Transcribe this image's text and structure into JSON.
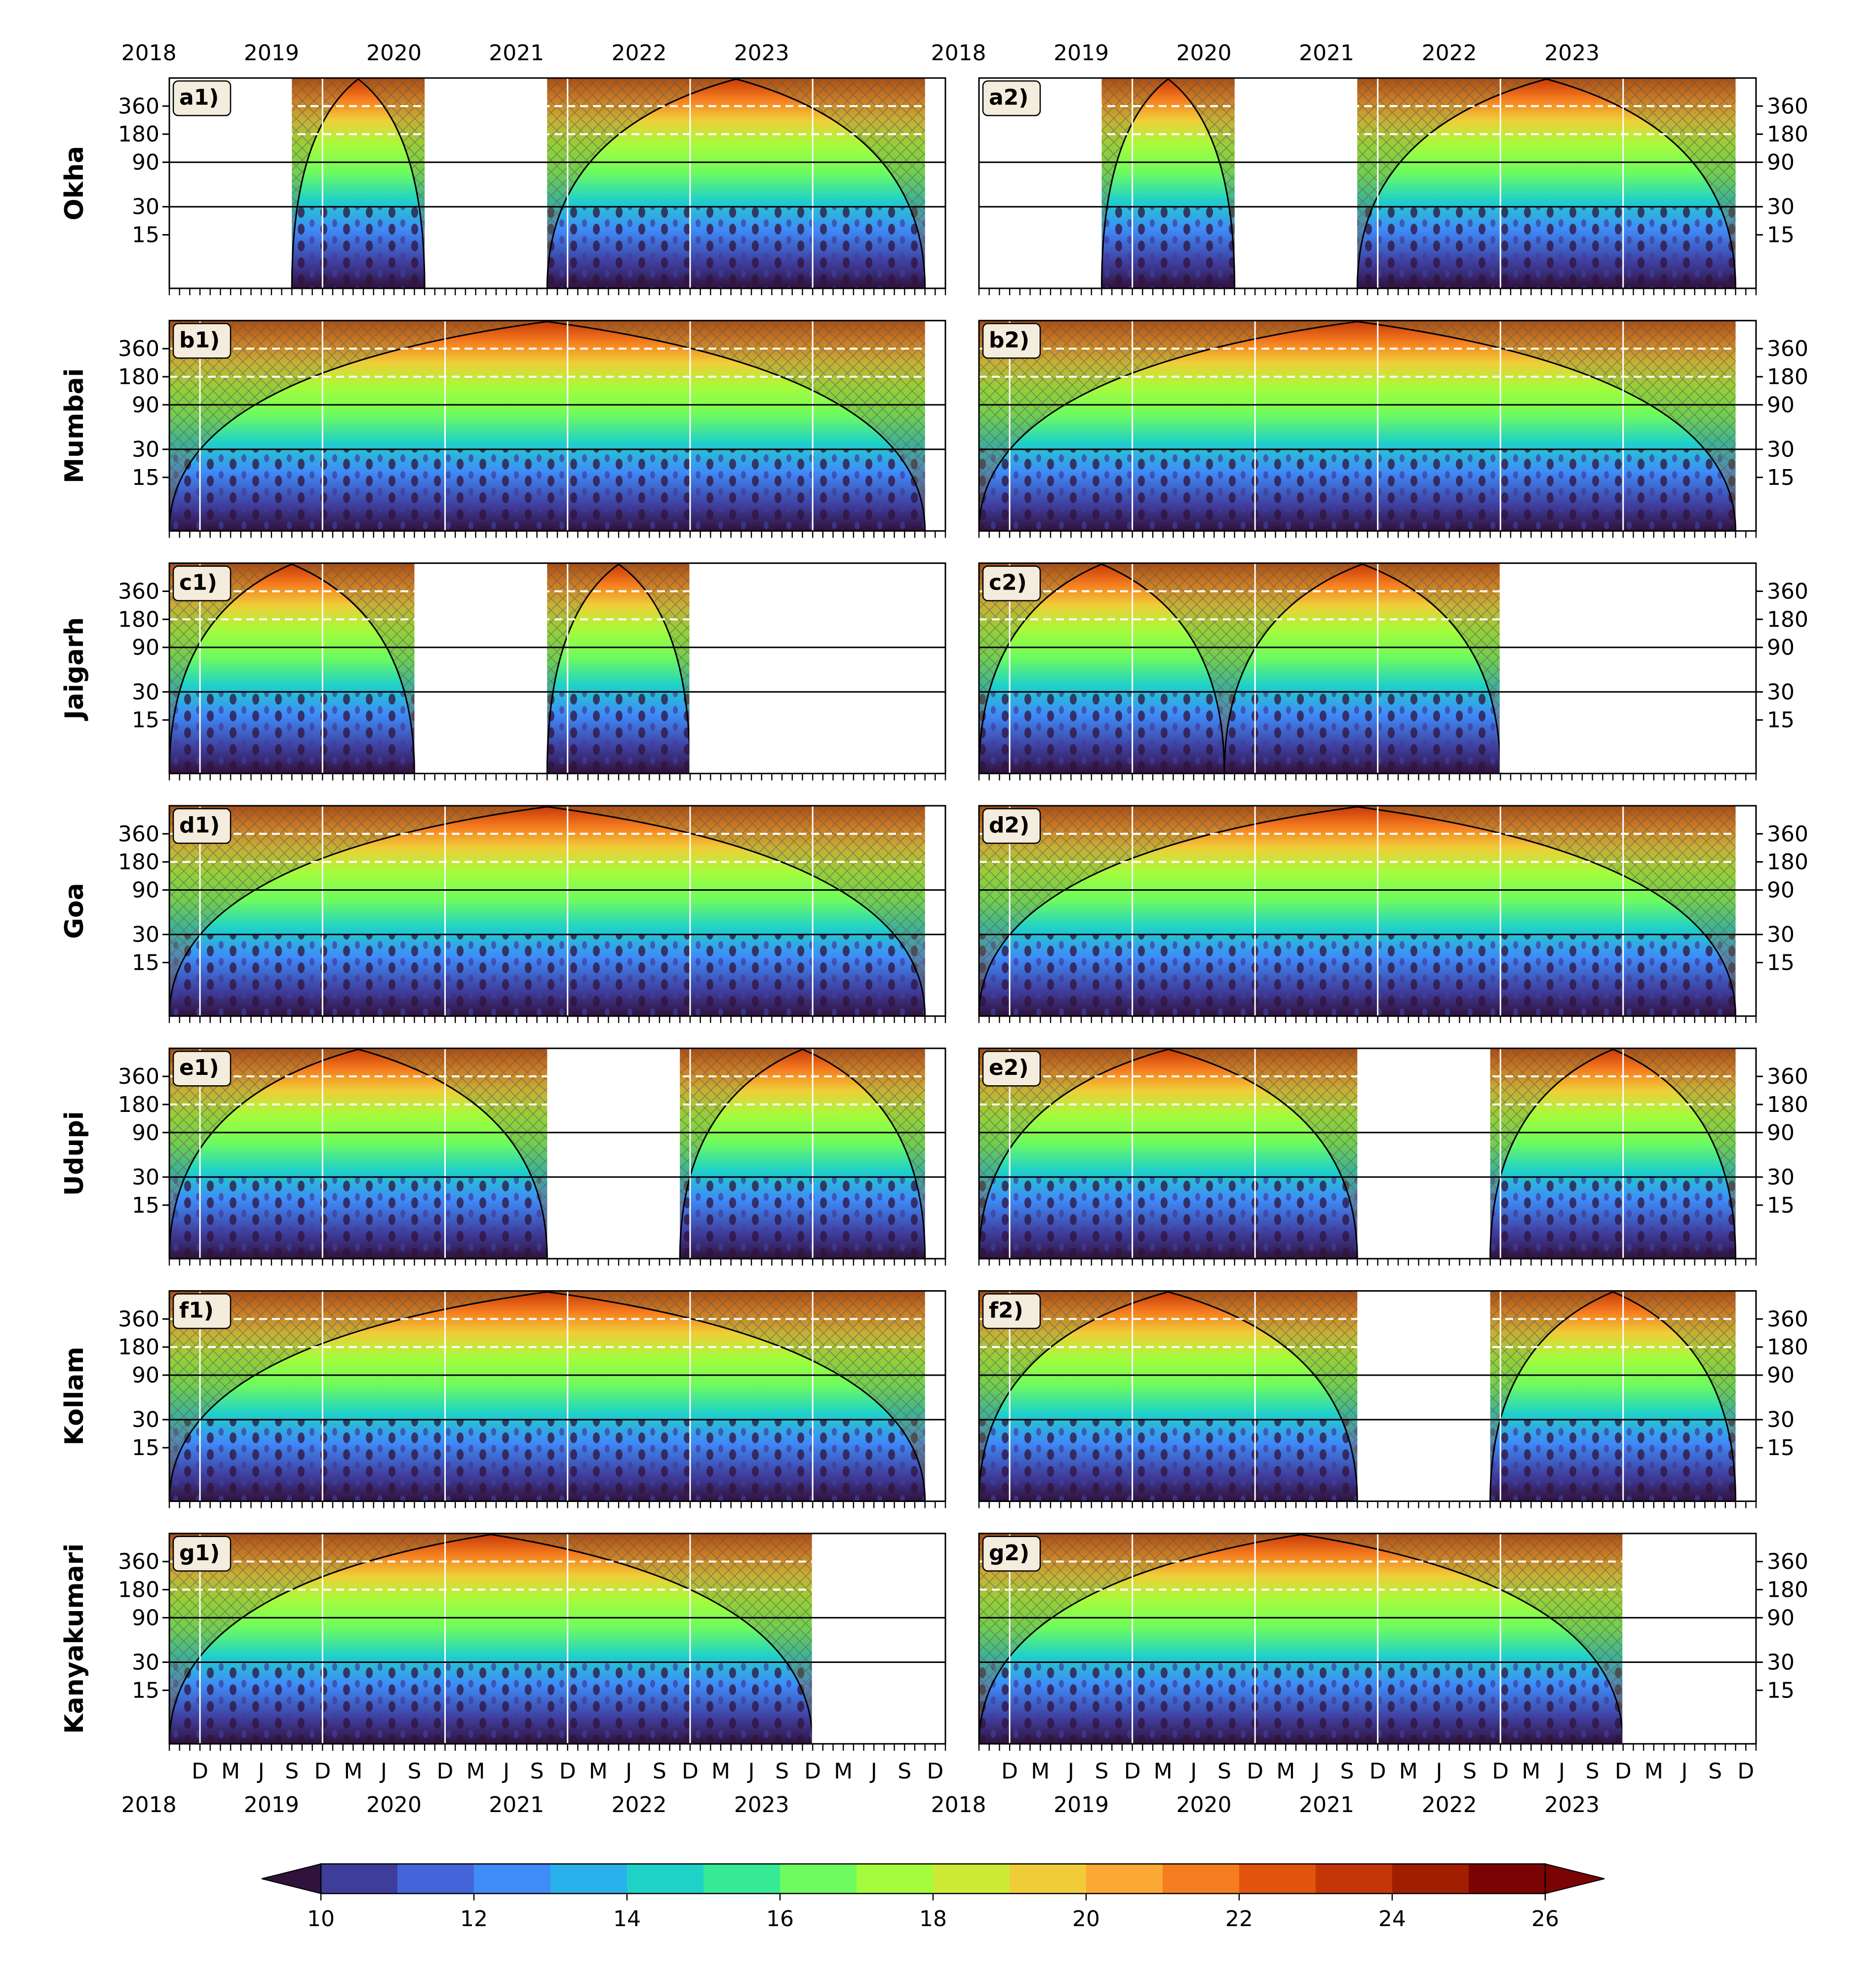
{
  "chart_data": {
    "type": "heatmap",
    "title": "",
    "description_units": "wavelet power spectrum panels; y = period (days, log scale); x = time",
    "y_ticks": [
      "360",
      "180",
      "90",
      "30",
      "15"
    ],
    "y_tick_values": [
      360,
      180,
      90,
      30,
      15
    ],
    "y_range_days": [
      4,
      720
    ],
    "y_scale": "log",
    "x_range": [
      "2017-09",
      "2023-12"
    ],
    "year_labels": [
      "2018",
      "2019",
      "2020",
      "2021",
      "2022",
      "2023"
    ],
    "month_labels": [
      "D",
      "M",
      "J",
      "S"
    ],
    "columns": [
      {
        "years": [
          "2018",
          "2019",
          "2020",
          "2021",
          "2022",
          "2023"
        ]
      },
      {
        "years": [
          "2018",
          "2019",
          "2020",
          "2021",
          "2022",
          "2023"
        ]
      }
    ],
    "rows": [
      {
        "station": "Okha",
        "panels": [
          {
            "tag": "a1)",
            "segments": [
              [
                "2018-09",
                "2019-10"
              ],
              [
                "2020-10",
                "2023-11"
              ]
            ]
          },
          {
            "tag": "a2)",
            "segments": [
              [
                "2018-09",
                "2019-10"
              ],
              [
                "2020-10",
                "2023-11"
              ]
            ]
          }
        ]
      },
      {
        "station": "Mumbai",
        "panels": [
          {
            "tag": "b1)",
            "segments": [
              [
                "2017-09",
                "2023-11"
              ]
            ]
          },
          {
            "tag": "b2)",
            "segments": [
              [
                "2017-09",
                "2023-11"
              ]
            ]
          }
        ]
      },
      {
        "station": "Jaigarh",
        "panels": [
          {
            "tag": "c1)",
            "segments": [
              [
                "2017-09",
                "2019-09"
              ],
              [
                "2020-10",
                "2021-12"
              ]
            ]
          },
          {
            "tag": "c2)",
            "segments": [
              [
                "2017-09",
                "2019-09"
              ],
              [
                "2019-09",
                "2021-12"
              ]
            ]
          }
        ]
      },
      {
        "station": "Goa",
        "panels": [
          {
            "tag": "d1)",
            "segments": [
              [
                "2017-09",
                "2023-11"
              ]
            ]
          },
          {
            "tag": "d2)",
            "segments": [
              [
                "2017-09",
                "2023-11"
              ]
            ]
          }
        ]
      },
      {
        "station": "Udupi",
        "panels": [
          {
            "tag": "e1)",
            "segments": [
              [
                "2017-09",
                "2020-10"
              ],
              [
                "2021-11",
                "2023-11"
              ]
            ]
          },
          {
            "tag": "e2)",
            "segments": [
              [
                "2017-09",
                "2020-10"
              ],
              [
                "2021-11",
                "2023-11"
              ]
            ]
          }
        ]
      },
      {
        "station": "Kollam",
        "panels": [
          {
            "tag": "f1)",
            "segments": [
              [
                "2017-09",
                "2023-11"
              ]
            ]
          },
          {
            "tag": "f2)",
            "segments": [
              [
                "2017-09",
                "2020-10"
              ],
              [
                "2021-11",
                "2023-11"
              ]
            ]
          }
        ]
      },
      {
        "station": "Kanyakumari",
        "panels": [
          {
            "tag": "g1)",
            "segments": [
              [
                "2017-09",
                "2022-12"
              ]
            ]
          },
          {
            "tag": "g2)",
            "segments": [
              [
                "2017-09",
                "2022-12"
              ]
            ]
          }
        ]
      }
    ],
    "colorbar": {
      "min": 10,
      "max": 26,
      "step": 1,
      "tick_labels": [
        "10",
        "12",
        "14",
        "16",
        "18",
        "20",
        "22",
        "24",
        "26"
      ],
      "extend": "both",
      "colors": [
        "#30123b",
        "#3f3d9c",
        "#4465d9",
        "#3f8bf8",
        "#29b1ec",
        "#1fd2c8",
        "#36ea96",
        "#6dfb5f",
        "#a4fc3c",
        "#cdeb34",
        "#f0cd38",
        "#fca834",
        "#f57c20",
        "#e2540e",
        "#c43605",
        "#a11e02",
        "#7a0403"
      ]
    },
    "reference_lines": {
      "white_dashed_days": [
        360,
        180
      ],
      "black_solid_days": [
        90,
        30
      ]
    }
  }
}
